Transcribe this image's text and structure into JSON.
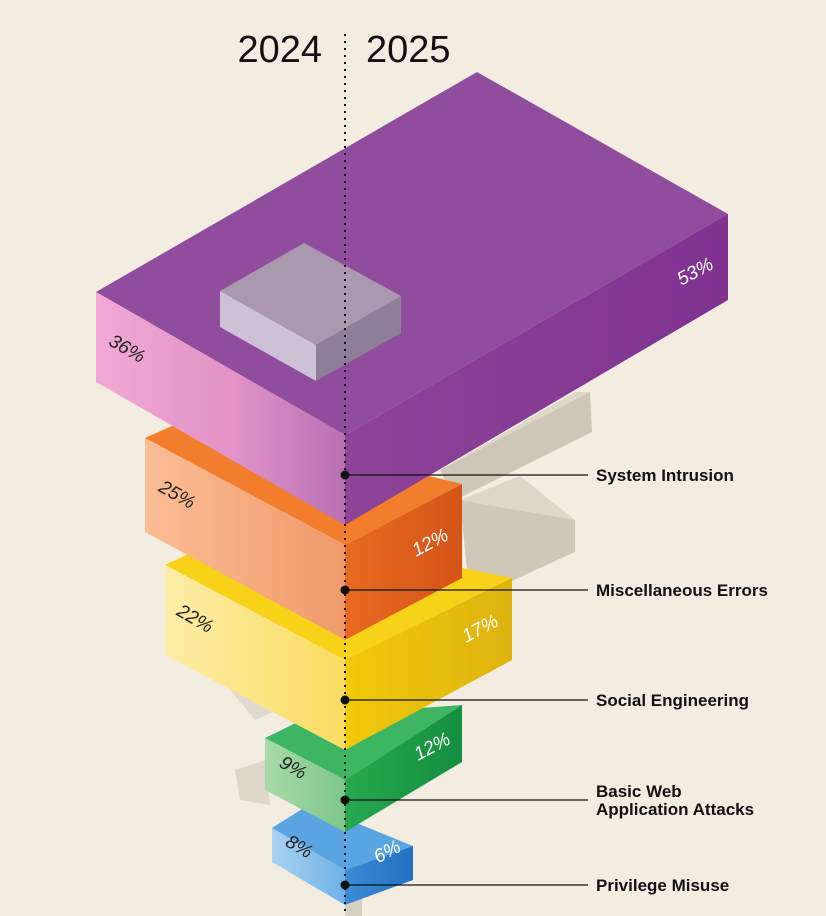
{
  "chart_data": {
    "type": "bar",
    "subtype": "isometric-stacked-blocks",
    "years": [
      "2024",
      "2025"
    ],
    "categories": [
      "System Intrusion",
      "Miscellaneous Errors",
      "Social Engineering",
      "Basic Web Application Attacks",
      "Privilege Misuse"
    ],
    "series": [
      {
        "name": "2024",
        "values": [
          36,
          25,
          22,
          9,
          8
        ]
      },
      {
        "name": "2025",
        "values": [
          53,
          12,
          17,
          12,
          6
        ]
      }
    ],
    "value_labels": {
      "2024": [
        "36%",
        "25%",
        "22%",
        "9%",
        "8%"
      ],
      "2025": [
        "53%",
        "12%",
        "17%",
        "12%",
        "6%"
      ]
    },
    "category_label_lines": [
      [
        "System Intrusion"
      ],
      [
        "Miscellaneous Errors"
      ],
      [
        "Social Engineering"
      ],
      [
        "Basic Web",
        "Application Attacks"
      ],
      [
        "Privilege Misuse"
      ]
    ],
    "colors": {
      "System Intrusion": {
        "left_2024": "#eaa0cf",
        "right_2025": "#8c3d96",
        "top": "#94509e"
      },
      "Miscellaneous Errors": {
        "left_2024": "#f6ae7e",
        "right_2025": "#df5f1c",
        "top": "#f08030"
      },
      "Social Engineering": {
        "left_2024": "#fbe48a",
        "right_2025": "#e8be0c",
        "top": "#f7d00e"
      },
      "Basic Web Application Attacks": {
        "left_2024": "#9bd2a0",
        "right_2025": "#1ea14c",
        "top": "#36b35a"
      },
      "Privilege Misuse": {
        "left_2024": "#9cc8ee",
        "right_2025": "#2b7fcf",
        "top": "#4898de"
      }
    },
    "background": "#f3ede1"
  }
}
